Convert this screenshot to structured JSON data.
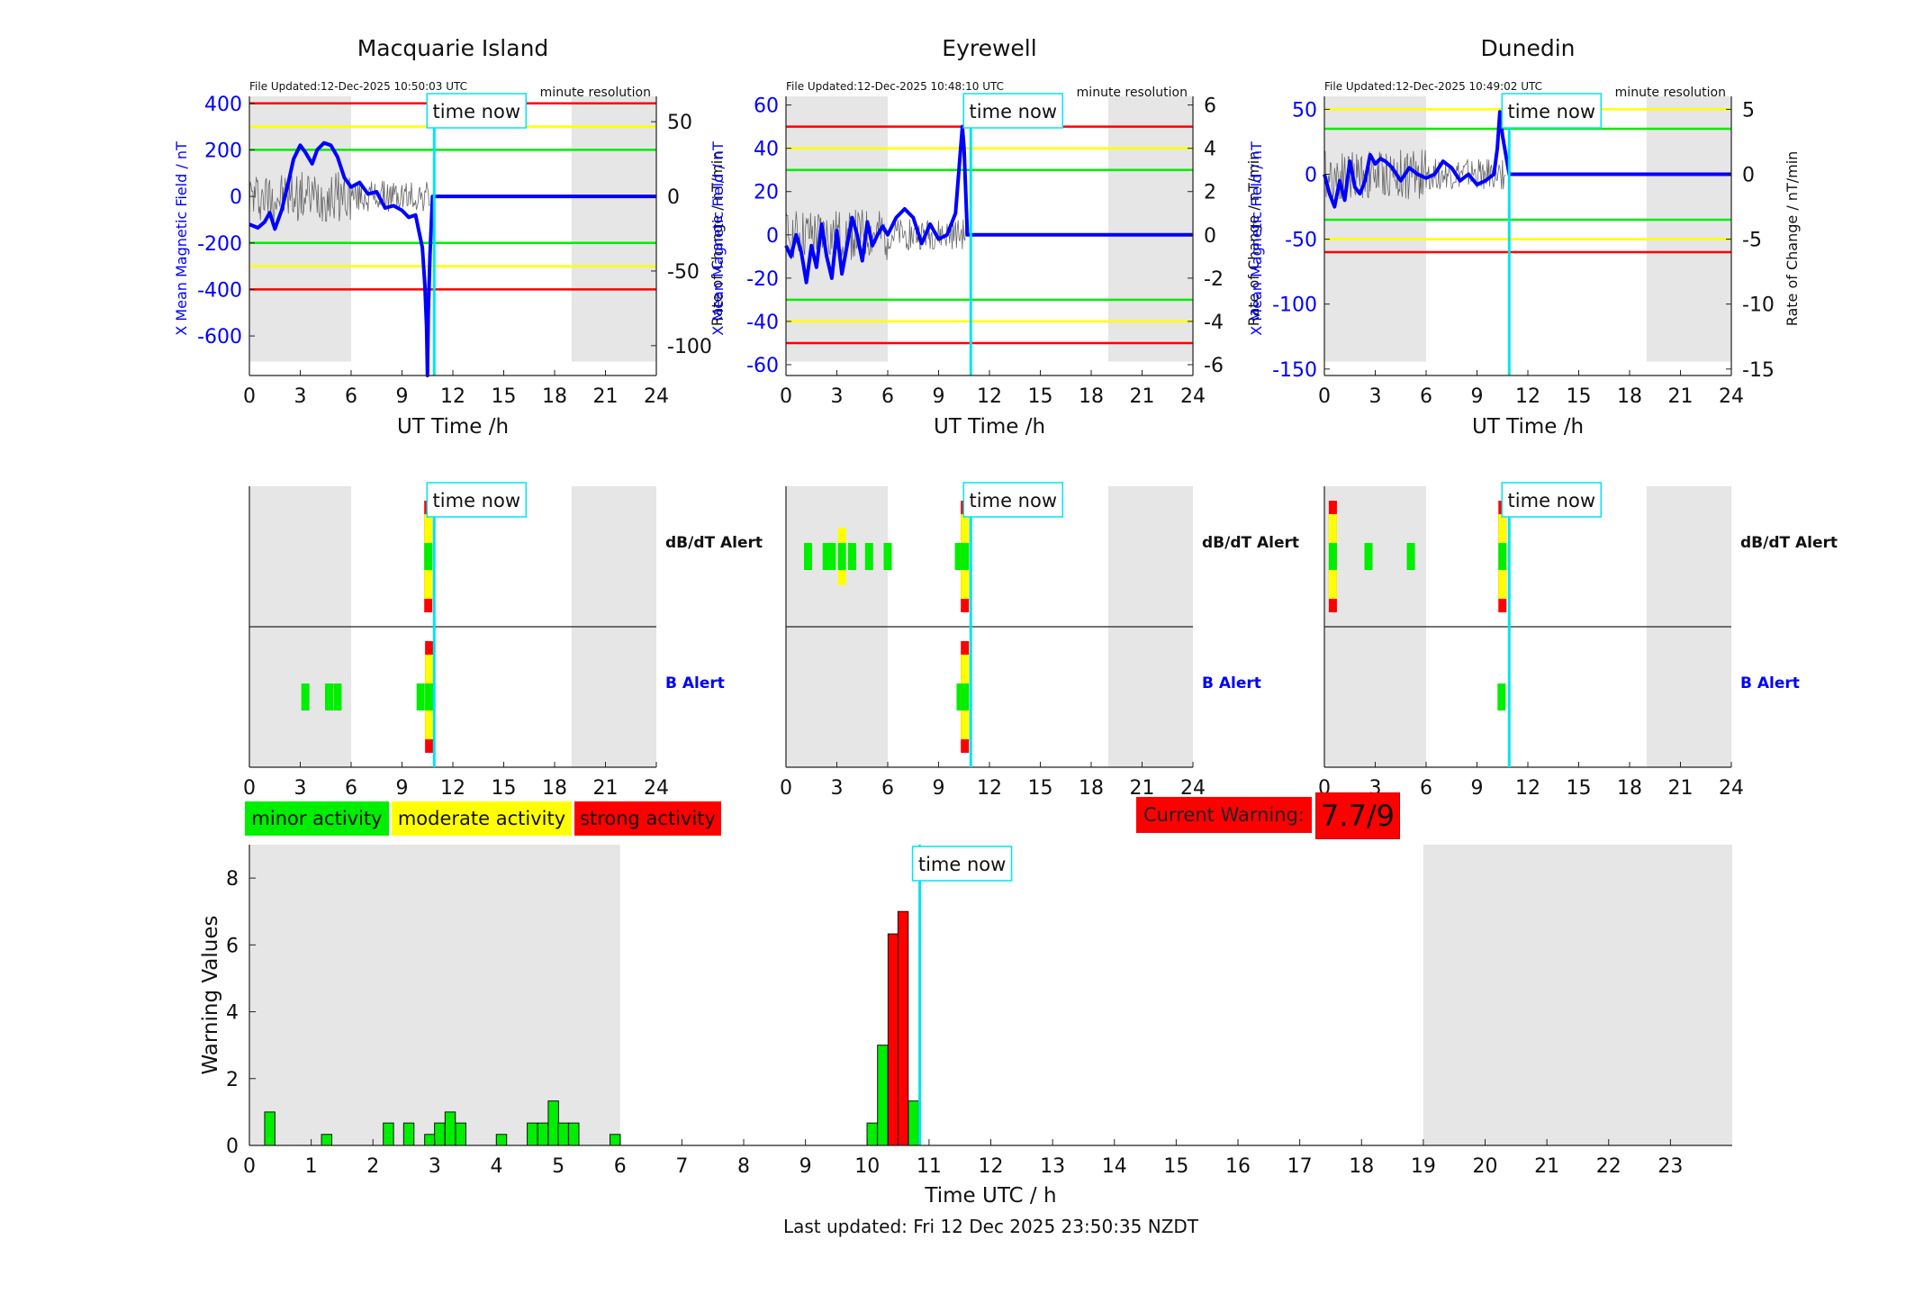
{
  "panel_labels": {
    "file_updated_prefix": "File Updated:",
    "resolution": "minute resolution",
    "time_now": "time now",
    "x_label": "UT Time /h",
    "y_left_label": "X Mean Magnetic Field / nT",
    "y_right_label": "Rate of Change / nT/min"
  },
  "colors": {
    "blue": "#0000ff",
    "red": "#ff0000",
    "yellow": "#ffff00",
    "green": "#00ee00",
    "cyan": "#00e5ee",
    "night": "#e6e6e6"
  },
  "stations": [
    {
      "name": "Macquarie Island",
      "file_updated": "12-Dec-2025 10:50:03 UTC",
      "yl": [
        -770,
        430
      ],
      "yr": [
        -120,
        67
      ],
      "yl_ticks": [
        400,
        200,
        0,
        -200,
        -400,
        -600
      ],
      "yr_ticks": [
        50,
        0,
        -50,
        -100
      ],
      "thresholds": {
        "red": 400,
        "yellow": 300,
        "green": 200
      },
      "time_now": 10.9,
      "mag_series": [
        [
          0,
          -120
        ],
        [
          0.5,
          -135
        ],
        [
          0.9,
          -110
        ],
        [
          1.2,
          -70
        ],
        [
          1.5,
          -140
        ],
        [
          1.9,
          -60
        ],
        [
          2.3,
          60
        ],
        [
          2.6,
          160
        ],
        [
          3.0,
          220
        ],
        [
          3.3,
          190
        ],
        [
          3.7,
          140
        ],
        [
          4.0,
          200
        ],
        [
          4.4,
          230
        ],
        [
          4.8,
          220
        ],
        [
          5.2,
          170
        ],
        [
          5.6,
          80
        ],
        [
          6.0,
          40
        ],
        [
          6.5,
          60
        ],
        [
          7.0,
          10
        ],
        [
          7.5,
          20
        ],
        [
          8.0,
          -50
        ],
        [
          8.5,
          -40
        ],
        [
          9.0,
          -60
        ],
        [
          9.4,
          -90
        ],
        [
          9.8,
          -80
        ],
        [
          10.0,
          -150
        ],
        [
          10.2,
          -220
        ],
        [
          10.35,
          -380
        ],
        [
          10.45,
          -560
        ],
        [
          10.5,
          -770
        ],
        [
          10.55,
          -500
        ],
        [
          10.65,
          -250
        ],
        [
          10.8,
          0
        ],
        [
          24,
          0
        ]
      ],
      "alerts": {
        "dbdt": [
          {
            "t": 10.55,
            "s": 3
          }
        ],
        "b": [
          {
            "t": 3.3,
            "s": 1
          },
          {
            "t": 4.7,
            "s": 1
          },
          {
            "t": 5.2,
            "s": 1
          },
          {
            "t": 10.1,
            "s": 1
          },
          {
            "t": 10.6,
            "s": 3
          }
        ]
      }
    },
    {
      "name": "Eyrewell",
      "file_updated": "12-Dec-2025 10:48:10 UTC",
      "yl": [
        -65,
        64
      ],
      "yr": [
        -6.5,
        6.4
      ],
      "yl_ticks": [
        60,
        40,
        20,
        0,
        -20,
        -40,
        -60
      ],
      "yr_ticks": [
        6,
        4,
        2,
        0,
        -2,
        -4,
        -6
      ],
      "thresholds": {
        "red": 50,
        "yellow": 40,
        "green": 30
      },
      "time_now": 10.9,
      "mag_series": [
        [
          0,
          -5
        ],
        [
          0.3,
          -10
        ],
        [
          0.6,
          0
        ],
        [
          0.9,
          -8
        ],
        [
          1.2,
          -22
        ],
        [
          1.5,
          -5
        ],
        [
          1.8,
          -15
        ],
        [
          2.1,
          5
        ],
        [
          2.4,
          -10
        ],
        [
          2.7,
          -20
        ],
        [
          3.0,
          2
        ],
        [
          3.3,
          -18
        ],
        [
          3.6,
          -5
        ],
        [
          3.9,
          8
        ],
        [
          4.2,
          0
        ],
        [
          4.5,
          -12
        ],
        [
          4.8,
          6
        ],
        [
          5.1,
          -5
        ],
        [
          5.4,
          0
        ],
        [
          5.7,
          4
        ],
        [
          6.0,
          0
        ],
        [
          6.5,
          8
        ],
        [
          7.0,
          12
        ],
        [
          7.5,
          8
        ],
        [
          8.0,
          -4
        ],
        [
          8.5,
          5
        ],
        [
          9.0,
          -2
        ],
        [
          9.5,
          0
        ],
        [
          10.0,
          10
        ],
        [
          10.2,
          30
        ],
        [
          10.4,
          50
        ],
        [
          10.5,
          40
        ],
        [
          10.6,
          20
        ],
        [
          10.7,
          0
        ],
        [
          11.0,
          0
        ],
        [
          24,
          0
        ]
      ],
      "alerts": {
        "dbdt": [
          {
            "t": 1.3,
            "s": 1
          },
          {
            "t": 2.4,
            "s": 1
          },
          {
            "t": 2.7,
            "s": 1
          },
          {
            "t": 3.3,
            "s": 2
          },
          {
            "t": 3.9,
            "s": 1
          },
          {
            "t": 4.9,
            "s": 1
          },
          {
            "t": 6.0,
            "s": 1
          },
          {
            "t": 10.2,
            "s": 1
          },
          {
            "t": 10.55,
            "s": 3
          }
        ],
        "b": [
          {
            "t": 10.3,
            "s": 1
          },
          {
            "t": 10.55,
            "s": 3
          }
        ]
      }
    },
    {
      "name": "Dunedin",
      "file_updated": "12-Dec-2025 10:49:02 UTC",
      "yl": [
        -155,
        60
      ],
      "yr": [
        -15.5,
        6
      ],
      "yl_ticks": [
        50,
        0,
        -50,
        -100,
        -150
      ],
      "yr_ticks": [
        5,
        0,
        -5,
        -10,
        -15
      ],
      "thresholds": {
        "red": -60,
        "yellow": 50,
        "green": 35
      },
      "time_now": 10.9,
      "mag_series": [
        [
          0,
          0
        ],
        [
          0.3,
          -15
        ],
        [
          0.6,
          -25
        ],
        [
          0.9,
          -5
        ],
        [
          1.2,
          -20
        ],
        [
          1.5,
          10
        ],
        [
          1.8,
          -10
        ],
        [
          2.1,
          -15
        ],
        [
          2.4,
          -5
        ],
        [
          2.7,
          15
        ],
        [
          3.0,
          8
        ],
        [
          3.3,
          12
        ],
        [
          3.6,
          10
        ],
        [
          4.0,
          5
        ],
        [
          4.5,
          -5
        ],
        [
          5.0,
          5
        ],
        [
          5.5,
          0
        ],
        [
          6.0,
          -3
        ],
        [
          6.5,
          0
        ],
        [
          7.0,
          10
        ],
        [
          7.5,
          5
        ],
        [
          8.0,
          -5
        ],
        [
          8.5,
          0
        ],
        [
          9.0,
          -8
        ],
        [
          9.5,
          -5
        ],
        [
          10.0,
          0
        ],
        [
          10.2,
          20
        ],
        [
          10.35,
          48
        ],
        [
          10.5,
          30
        ],
        [
          10.7,
          15
        ],
        [
          10.9,
          0
        ],
        [
          24,
          0
        ]
      ],
      "alerts": {
        "dbdt": [
          {
            "t": 0.5,
            "s": 3
          },
          {
            "t": 2.6,
            "s": 1
          },
          {
            "t": 5.1,
            "s": 1
          },
          {
            "t": 10.5,
            "s": 3
          }
        ],
        "b": [
          {
            "t": 10.45,
            "s": 1
          }
        ]
      }
    }
  ],
  "alert_labels": {
    "dbdt": "dB/dT Alert",
    "b": "B Alert"
  },
  "legend": {
    "minor": "minor activity",
    "moderate": "moderate activity",
    "strong": "strong activity"
  },
  "current_warning": {
    "label": "Current Warning:",
    "value": "7.7/9"
  },
  "chart_data": {
    "type": "bar",
    "title": "",
    "xlabel": "Time UTC / h",
    "ylabel": "Warning Values",
    "xlim": [
      0,
      24
    ],
    "ylim": [
      0,
      9
    ],
    "x_ticks": [
      0,
      1,
      2,
      3,
      4,
      5,
      6,
      7,
      8,
      9,
      10,
      11,
      12,
      13,
      14,
      15,
      16,
      17,
      18,
      19,
      20,
      21,
      22,
      23
    ],
    "y_ticks": [
      0,
      2,
      4,
      6,
      8
    ],
    "night_shading": [
      [
        0,
        6
      ],
      [
        19,
        24
      ]
    ],
    "time_now": 10.85,
    "bar_width_h": 0.1667,
    "bars": [
      {
        "x": 0.33,
        "y": 1.0,
        "level": "minor"
      },
      {
        "x": 1.25,
        "y": 0.33,
        "level": "minor"
      },
      {
        "x": 2.25,
        "y": 0.67,
        "level": "minor"
      },
      {
        "x": 2.58,
        "y": 0.67,
        "level": "minor"
      },
      {
        "x": 2.92,
        "y": 0.33,
        "level": "minor"
      },
      {
        "x": 3.08,
        "y": 0.67,
        "level": "minor"
      },
      {
        "x": 3.25,
        "y": 1.0,
        "level": "minor"
      },
      {
        "x": 3.42,
        "y": 0.67,
        "level": "minor"
      },
      {
        "x": 4.08,
        "y": 0.33,
        "level": "minor"
      },
      {
        "x": 4.58,
        "y": 0.67,
        "level": "minor"
      },
      {
        "x": 4.75,
        "y": 0.67,
        "level": "minor"
      },
      {
        "x": 4.92,
        "y": 1.33,
        "level": "minor"
      },
      {
        "x": 5.08,
        "y": 0.67,
        "level": "minor"
      },
      {
        "x": 5.25,
        "y": 0.67,
        "level": "minor"
      },
      {
        "x": 5.92,
        "y": 0.33,
        "level": "minor"
      },
      {
        "x": 10.08,
        "y": 0.67,
        "level": "minor"
      },
      {
        "x": 10.25,
        "y": 3.0,
        "level": "minor"
      },
      {
        "x": 10.42,
        "y": 6.33,
        "level": "strong"
      },
      {
        "x": 10.58,
        "y": 7.0,
        "level": "strong"
      },
      {
        "x": 10.75,
        "y": 1.33,
        "level": "minor"
      }
    ]
  },
  "footer": {
    "last_updated": "Last updated: Fri 12 Dec 2025 23:50:35 NZDT"
  }
}
